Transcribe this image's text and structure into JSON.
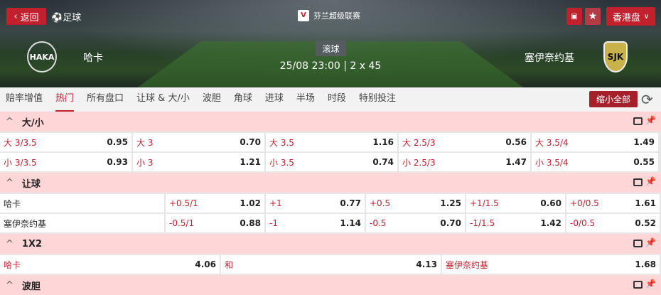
{
  "header": {
    "back_label": "返回",
    "sport": "足球",
    "league": "芬兰超级联赛",
    "odds_type": "香港盘",
    "live_label": "滚球",
    "datetime": "25/08 23:00 | 2 x 45",
    "home": "哈卡",
    "away": "塞伊奈约基",
    "home_logo": "HAKA",
    "away_logo": "SJK"
  },
  "tabs": [
    "赔率增值",
    "热门",
    "所有盘口",
    "让球 & 大/小",
    "波胆",
    "角球",
    "进球",
    "半场",
    "时段",
    "特别投注"
  ],
  "active_tab": "热门",
  "collapse_label": "缩小全部",
  "sections": {
    "ou": {
      "title": "大/小",
      "rows": [
        [
          [
            "大 3/3.5",
            "0.95"
          ],
          [
            "大 3",
            "0.70"
          ],
          [
            "大 3.5",
            "1.16"
          ],
          [
            "大 2.5/3",
            "0.56"
          ],
          [
            "大 3.5/4",
            "1.49"
          ]
        ],
        [
          [
            "小 3/3.5",
            "0.93"
          ],
          [
            "小 3",
            "1.21"
          ],
          [
            "小 3.5",
            "0.74"
          ],
          [
            "小 2.5/3",
            "1.47"
          ],
          [
            "小 3.5/4",
            "0.55"
          ]
        ]
      ]
    },
    "hdp": {
      "title": "让球",
      "rows": [
        {
          "team": "哈卡",
          "lines": [
            [
              "+0.5/1",
              "1.02"
            ],
            [
              "+1",
              "0.77"
            ],
            [
              "+0.5",
              "1.25"
            ],
            [
              "+1/1.5",
              "0.60"
            ],
            [
              "+0/0.5",
              "1.61"
            ]
          ]
        },
        {
          "team": "塞伊奈约基",
          "lines": [
            [
              "-0.5/1",
              "0.88"
            ],
            [
              "-1",
              "1.14"
            ],
            [
              "-0.5",
              "0.70"
            ],
            [
              "-1/1.5",
              "1.42"
            ],
            [
              "-0/0.5",
              "0.52"
            ]
          ]
        }
      ]
    },
    "x12": {
      "title": "1X2",
      "cells": [
        [
          "哈卡",
          "4.06"
        ],
        [
          "和",
          "4.13"
        ],
        [
          "塞伊奈约基",
          "1.68"
        ]
      ]
    },
    "cs": {
      "title": "波胆"
    }
  },
  "colors": {
    "accent": "#c0212d",
    "section_bg": "#ffd6d8"
  }
}
